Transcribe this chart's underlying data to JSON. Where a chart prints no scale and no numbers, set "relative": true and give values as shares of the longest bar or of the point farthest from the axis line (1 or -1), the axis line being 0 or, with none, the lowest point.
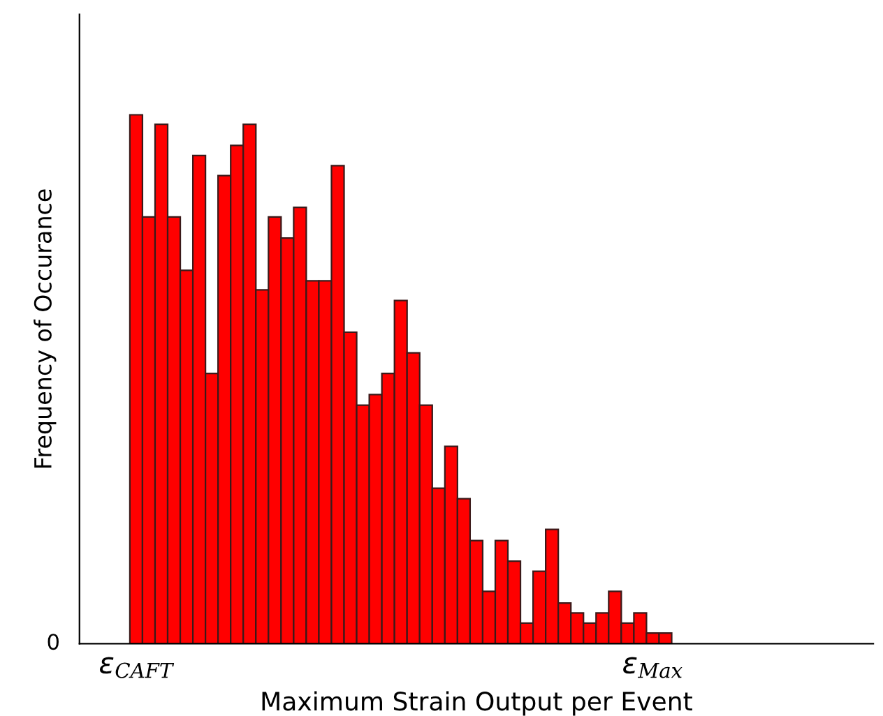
{
  "chart_data": {
    "type": "bar",
    "relative": true,
    "xlabel": "Maximum Strain Output per Event",
    "ylabel": "Frequency of Occurance",
    "annotations": [
      "0"
    ],
    "color": "#ff0000",
    "categories": [
      "ε$_{CAFT}$",
      null,
      null,
      null,
      null,
      null,
      null,
      null,
      null,
      null,
      null,
      null,
      null,
      null,
      null,
      null,
      null,
      null,
      null,
      null,
      null,
      null,
      null,
      null,
      null,
      null,
      null,
      null,
      null,
      null,
      null,
      null,
      null,
      null,
      null,
      null,
      null,
      null,
      null,
      null,
      null,
      "ε$_{Max}$",
      null
    ],
    "values": [
      1.0,
      0.807,
      0.982,
      0.807,
      0.706,
      0.923,
      0.511,
      0.885,
      0.942,
      0.982,
      0.669,
      0.807,
      0.767,
      0.825,
      0.686,
      0.686,
      0.904,
      0.589,
      0.451,
      0.471,
      0.511,
      0.649,
      0.55,
      0.451,
      0.294,
      0.373,
      0.274,
      0.195,
      0.099,
      0.195,
      0.156,
      0.039,
      0.137,
      0.216,
      0.077,
      0.058,
      0.039,
      0.058,
      0.099,
      0.039,
      0.058,
      0.02,
      0.02
    ]
  }
}
